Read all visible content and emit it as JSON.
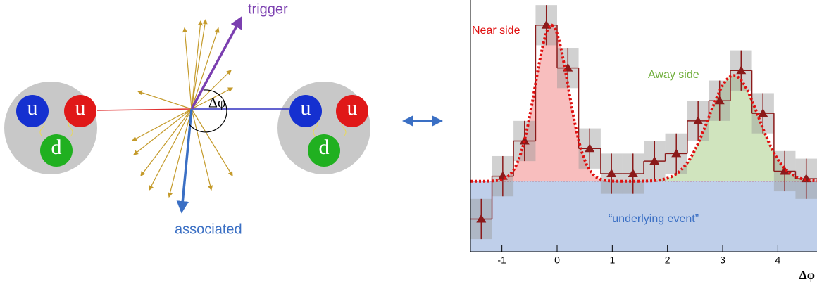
{
  "diagram": {
    "trigger": "trigger",
    "associated": "associated",
    "angle": "Δφ",
    "left_proton": {
      "quarks": [
        "u",
        "u",
        "d"
      ]
    },
    "right_proton": {
      "quarks": [
        "u",
        "u",
        "d"
      ]
    }
  },
  "chart_data": {
    "type": "histogram",
    "xlabel": "Δφ",
    "bins": [
      -1.57,
      -1.18,
      -0.79,
      -0.39,
      0,
      0.39,
      0.79,
      1.18,
      1.57,
      1.96,
      2.36,
      2.75,
      3.14,
      3.53,
      3.93,
      4.32,
      4.71
    ],
    "values": [
      13,
      30,
      44,
      90,
      73,
      41,
      31,
      31,
      36,
      39,
      52,
      60,
      72,
      55,
      32,
      29
    ],
    "errors": [
      8,
      8,
      8,
      8,
      8,
      8,
      8,
      8,
      8,
      8,
      8,
      8,
      8,
      8,
      8,
      8
    ],
    "xlim": [
      -1.57,
      4.71
    ],
    "ylim": [
      0,
      100
    ],
    "xticks": [
      -1,
      0,
      1,
      2,
      3,
      4
    ],
    "underlying_event_level": 28,
    "near_fit": {
      "amplitude": 62,
      "mean": -0.1,
      "sigma": 0.3
    },
    "away_fit": {
      "amplitude": 42,
      "mean": 3.2,
      "sigma": 0.45
    },
    "annotations": {
      "near": "Near side",
      "away": "Away side",
      "underlying": "“underlying event”"
    },
    "color": "#8b1a1a"
  }
}
